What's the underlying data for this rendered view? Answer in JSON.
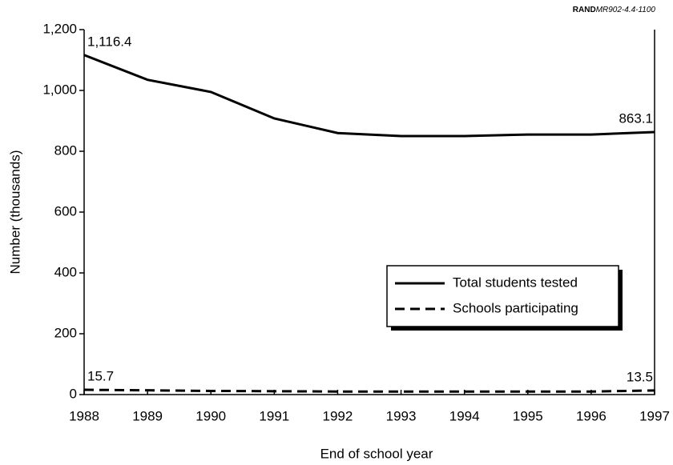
{
  "chart_data": {
    "type": "line",
    "source_org": "RAND",
    "source_id": "MR902-4.4-1100",
    "xlabel": "End of school year",
    "ylabel": "Number (thousands)",
    "x": [
      1988,
      1989,
      1990,
      1991,
      1992,
      1993,
      1994,
      1995,
      1996,
      1997
    ],
    "xlim": [
      1988,
      1997
    ],
    "xticks": [
      1988,
      1989,
      1990,
      1991,
      1992,
      1993,
      1994,
      1995,
      1996,
      1997
    ],
    "ylim": [
      0,
      1200
    ],
    "yticks": [
      0,
      200,
      400,
      600,
      800,
      {
        "value": 1000,
        "label": "1,000"
      },
      {
        "value": 1200,
        "label": "1,200"
      }
    ],
    "grid": false,
    "legend": "lower right",
    "series": [
      {
        "name": "Total students tested",
        "color": "#000000",
        "dash": false,
        "values": [
          1116.4,
          1035,
          995,
          908,
          860,
          850,
          850,
          855,
          855,
          863.1
        ],
        "value_labels": [
          "1,116.4",
          null,
          null,
          null,
          null,
          null,
          null,
          null,
          null,
          "863.1"
        ]
      },
      {
        "name": "Schools participating",
        "color": "#000000",
        "dash": true,
        "values": [
          15.7,
          14,
          12,
          11,
          10,
          10,
          10,
          10,
          10,
          13.5
        ],
        "value_labels": [
          "15.7",
          null,
          null,
          null,
          null,
          null,
          null,
          null,
          null,
          "13.5"
        ]
      }
    ]
  }
}
